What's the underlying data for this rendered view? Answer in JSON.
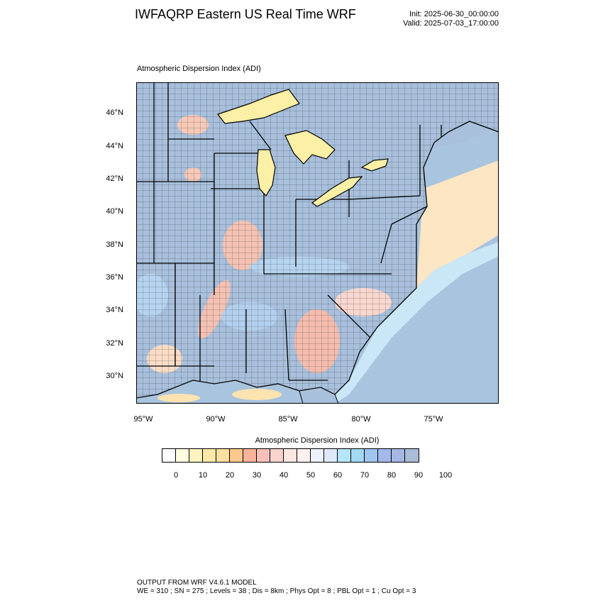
{
  "header": {
    "title": "IWFAQRP Eastern US Real Time WRF",
    "init": "Init: 2025-06-30_00:00:00",
    "valid": "Valid: 2025-07-03_17:00:00"
  },
  "map": {
    "title": "Atmospheric Dispersion Index   (ADI)",
    "lat_labels": [
      "46°N",
      "44°N",
      "42°N",
      "40°N",
      "38°N",
      "36°N",
      "34°N",
      "32°N",
      "30°N"
    ],
    "lon_labels": [
      "95°W",
      "90°W",
      "85°W",
      "80°W",
      "75°W"
    ],
    "colors": {
      "land_high_adi": "#a8c0dc",
      "ocean": "#a9c4de",
      "lakes": "#fcefa6",
      "low_adi_orange": "#fcd9a3",
      "mid_adi_red": "#f4bcb0",
      "cyan_band": "#b9e3f8",
      "borders": "#000000"
    }
  },
  "colorbar": {
    "title": "Atmospheric Dispersion Index  (ADI)",
    "colors": [
      "#ffffff",
      "#fffde0",
      "#fff3c0",
      "#ffe9a8",
      "#ffdfa0",
      "#fcc98c",
      "#f9b39a",
      "#f6c0b8",
      "#f9d3cf",
      "#fbe6e2",
      "#fdf1ef",
      "#eef2fc",
      "#dde9f9",
      "#b6e4f9",
      "#a2d9f5",
      "#9fc5f2",
      "#a4b8ea",
      "#a6b7e4",
      "#aabcd7"
    ],
    "ticks": [
      "0",
      "10",
      "20",
      "30",
      "40",
      "50",
      "60",
      "70",
      "80",
      "90",
      "100"
    ]
  },
  "footer": {
    "line1": "OUTPUT FROM WRF V4.6.1 MODEL",
    "line2": "WE = 310 ; SN = 275 ; Levels = 38 ; Dis = 8km ; Phys Opt = 8 ; PBL Opt = 1 ; Cu Opt = 3"
  }
}
